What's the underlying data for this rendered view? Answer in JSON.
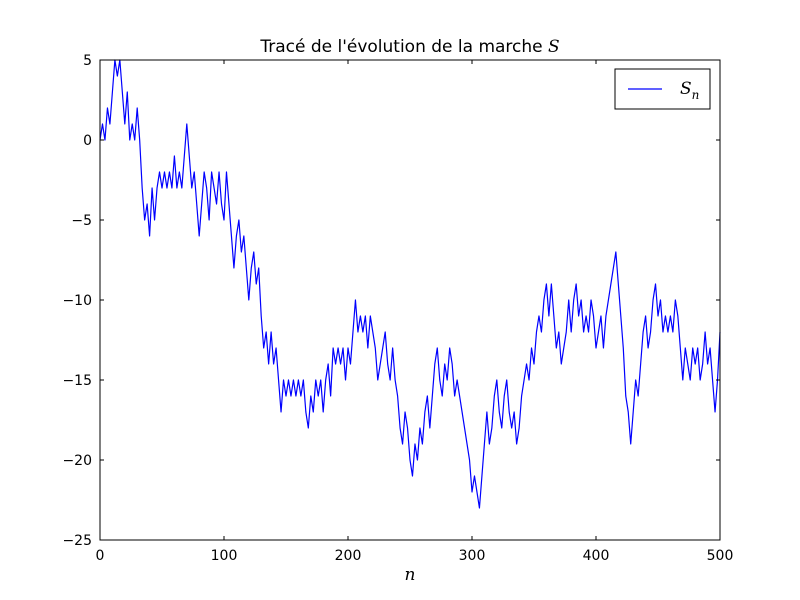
{
  "chart_data": {
    "type": "line",
    "title": {
      "text": "Tracé de l'évolution de la marche ",
      "math_symbol": "S"
    },
    "xlabel": "n",
    "ylabel": "",
    "xlim": [
      0,
      500
    ],
    "ylim": [
      -25,
      5
    ],
    "x_ticks": [
      0,
      100,
      200,
      300,
      400,
      500
    ],
    "y_ticks": [
      5,
      0,
      -5,
      -10,
      -15,
      -20,
      -25
    ],
    "x_tick_labels": [
      "0",
      "100",
      "200",
      "300",
      "400",
      "500"
    ],
    "y_tick_labels": [
      "5",
      "0",
      "−5",
      "−10",
      "−15",
      "−20",
      "−25"
    ],
    "grid": false,
    "legend": {
      "position": "top-right",
      "entries": [
        {
          "symbol": "S",
          "subscript": "n"
        }
      ]
    },
    "series": [
      {
        "color": "#0000ff",
        "points": [
          [
            0,
            0
          ],
          [
            2,
            1
          ],
          [
            4,
            0
          ],
          [
            6,
            2
          ],
          [
            8,
            1
          ],
          [
            10,
            3
          ],
          [
            12,
            5
          ],
          [
            14,
            4
          ],
          [
            16,
            5
          ],
          [
            18,
            3
          ],
          [
            20,
            1
          ],
          [
            22,
            3
          ],
          [
            24,
            0
          ],
          [
            26,
            1
          ],
          [
            28,
            0
          ],
          [
            30,
            2
          ],
          [
            32,
            0
          ],
          [
            34,
            -3
          ],
          [
            36,
            -5
          ],
          [
            38,
            -4
          ],
          [
            40,
            -6
          ],
          [
            42,
            -3
          ],
          [
            44,
            -5
          ],
          [
            46,
            -3
          ],
          [
            48,
            -2
          ],
          [
            50,
            -3
          ],
          [
            52,
            -2
          ],
          [
            54,
            -3
          ],
          [
            56,
            -2
          ],
          [
            58,
            -3
          ],
          [
            60,
            -1
          ],
          [
            62,
            -3
          ],
          [
            64,
            -2
          ],
          [
            66,
            -3
          ],
          [
            68,
            -1
          ],
          [
            70,
            1
          ],
          [
            72,
            -1
          ],
          [
            74,
            -3
          ],
          [
            76,
            -2
          ],
          [
            78,
            -4
          ],
          [
            80,
            -6
          ],
          [
            82,
            -4
          ],
          [
            84,
            -2
          ],
          [
            86,
            -3
          ],
          [
            88,
            -5
          ],
          [
            90,
            -2
          ],
          [
            92,
            -3
          ],
          [
            94,
            -4
          ],
          [
            96,
            -2
          ],
          [
            98,
            -4
          ],
          [
            100,
            -5
          ],
          [
            102,
            -2
          ],
          [
            104,
            -4
          ],
          [
            106,
            -6
          ],
          [
            108,
            -8
          ],
          [
            110,
            -6
          ],
          [
            112,
            -5
          ],
          [
            114,
            -7
          ],
          [
            116,
            -6
          ],
          [
            118,
            -8
          ],
          [
            120,
            -10
          ],
          [
            122,
            -8
          ],
          [
            124,
            -7
          ],
          [
            126,
            -9
          ],
          [
            128,
            -8
          ],
          [
            130,
            -11
          ],
          [
            132,
            -13
          ],
          [
            134,
            -12
          ],
          [
            136,
            -14
          ],
          [
            138,
            -12
          ],
          [
            140,
            -14
          ],
          [
            142,
            -13
          ],
          [
            144,
            -15
          ],
          [
            146,
            -17
          ],
          [
            148,
            -15
          ],
          [
            150,
            -16
          ],
          [
            152,
            -15
          ],
          [
            154,
            -16
          ],
          [
            156,
            -15
          ],
          [
            158,
            -16
          ],
          [
            160,
            -15
          ],
          [
            162,
            -16
          ],
          [
            164,
            -15
          ],
          [
            166,
            -17
          ],
          [
            168,
            -18
          ],
          [
            170,
            -16
          ],
          [
            172,
            -17
          ],
          [
            174,
            -15
          ],
          [
            176,
            -16
          ],
          [
            178,
            -15
          ],
          [
            180,
            -17
          ],
          [
            182,
            -15
          ],
          [
            184,
            -14
          ],
          [
            186,
            -16
          ],
          [
            188,
            -13
          ],
          [
            190,
            -14
          ],
          [
            192,
            -13
          ],
          [
            194,
            -14
          ],
          [
            196,
            -13
          ],
          [
            198,
            -15
          ],
          [
            200,
            -13
          ],
          [
            202,
            -14
          ],
          [
            204,
            -12
          ],
          [
            206,
            -10
          ],
          [
            208,
            -12
          ],
          [
            210,
            -11
          ],
          [
            212,
            -12
          ],
          [
            214,
            -11
          ],
          [
            216,
            -13
          ],
          [
            218,
            -11
          ],
          [
            220,
            -12
          ],
          [
            222,
            -13
          ],
          [
            224,
            -15
          ],
          [
            226,
            -14
          ],
          [
            228,
            -13
          ],
          [
            230,
            -12
          ],
          [
            232,
            -14
          ],
          [
            234,
            -15
          ],
          [
            236,
            -13
          ],
          [
            238,
            -15
          ],
          [
            240,
            -16
          ],
          [
            242,
            -18
          ],
          [
            244,
            -19
          ],
          [
            246,
            -17
          ],
          [
            248,
            -18
          ],
          [
            250,
            -20
          ],
          [
            252,
            -21
          ],
          [
            254,
            -19
          ],
          [
            256,
            -20
          ],
          [
            258,
            -18
          ],
          [
            260,
            -19
          ],
          [
            262,
            -17
          ],
          [
            264,
            -16
          ],
          [
            266,
            -18
          ],
          [
            268,
            -16
          ],
          [
            270,
            -14
          ],
          [
            272,
            -13
          ],
          [
            274,
            -15
          ],
          [
            276,
            -16
          ],
          [
            278,
            -14
          ],
          [
            280,
            -15
          ],
          [
            282,
            -13
          ],
          [
            284,
            -14
          ],
          [
            286,
            -16
          ],
          [
            288,
            -15
          ],
          [
            290,
            -16
          ],
          [
            292,
            -17
          ],
          [
            294,
            -18
          ],
          [
            296,
            -19
          ],
          [
            298,
            -20
          ],
          [
            300,
            -22
          ],
          [
            302,
            -21
          ],
          [
            304,
            -22
          ],
          [
            306,
            -23
          ],
          [
            308,
            -21
          ],
          [
            310,
            -19
          ],
          [
            312,
            -17
          ],
          [
            314,
            -19
          ],
          [
            316,
            -18
          ],
          [
            318,
            -16
          ],
          [
            320,
            -15
          ],
          [
            322,
            -17
          ],
          [
            324,
            -18
          ],
          [
            326,
            -16
          ],
          [
            328,
            -15
          ],
          [
            330,
            -17
          ],
          [
            332,
            -18
          ],
          [
            334,
            -17
          ],
          [
            336,
            -19
          ],
          [
            338,
            -18
          ],
          [
            340,
            -16
          ],
          [
            342,
            -15
          ],
          [
            344,
            -14
          ],
          [
            346,
            -15
          ],
          [
            348,
            -13
          ],
          [
            350,
            -14
          ],
          [
            352,
            -12
          ],
          [
            354,
            -11
          ],
          [
            356,
            -12
          ],
          [
            358,
            -10
          ],
          [
            360,
            -9
          ],
          [
            362,
            -11
          ],
          [
            364,
            -9
          ],
          [
            366,
            -11
          ],
          [
            368,
            -13
          ],
          [
            370,
            -12
          ],
          [
            372,
            -14
          ],
          [
            374,
            -13
          ],
          [
            376,
            -12
          ],
          [
            378,
            -10
          ],
          [
            380,
            -12
          ],
          [
            382,
            -10
          ],
          [
            384,
            -9
          ],
          [
            386,
            -11
          ],
          [
            388,
            -10
          ],
          [
            390,
            -12
          ],
          [
            392,
            -11
          ],
          [
            394,
            -12
          ],
          [
            396,
            -10
          ],
          [
            398,
            -11
          ],
          [
            400,
            -13
          ],
          [
            402,
            -12
          ],
          [
            404,
            -11
          ],
          [
            406,
            -13
          ],
          [
            408,
            -11
          ],
          [
            410,
            -10
          ],
          [
            412,
            -9
          ],
          [
            414,
            -8
          ],
          [
            416,
            -7
          ],
          [
            418,
            -9
          ],
          [
            420,
            -11
          ],
          [
            422,
            -13
          ],
          [
            424,
            -16
          ],
          [
            426,
            -17
          ],
          [
            428,
            -19
          ],
          [
            430,
            -17
          ],
          [
            432,
            -15
          ],
          [
            434,
            -16
          ],
          [
            436,
            -14
          ],
          [
            438,
            -12
          ],
          [
            440,
            -11
          ],
          [
            442,
            -13
          ],
          [
            444,
            -12
          ],
          [
            446,
            -10
          ],
          [
            448,
            -9
          ],
          [
            450,
            -11
          ],
          [
            452,
            -10
          ],
          [
            454,
            -12
          ],
          [
            456,
            -11
          ],
          [
            458,
            -12
          ],
          [
            460,
            -11
          ],
          [
            462,
            -12
          ],
          [
            464,
            -10
          ],
          [
            466,
            -11
          ],
          [
            468,
            -13
          ],
          [
            470,
            -15
          ],
          [
            472,
            -13
          ],
          [
            474,
            -14
          ],
          [
            476,
            -15
          ],
          [
            478,
            -13
          ],
          [
            480,
            -14
          ],
          [
            482,
            -13
          ],
          [
            484,
            -15
          ],
          [
            486,
            -14
          ],
          [
            488,
            -12
          ],
          [
            490,
            -14
          ],
          [
            492,
            -13
          ],
          [
            494,
            -15
          ],
          [
            496,
            -17
          ],
          [
            498,
            -15
          ],
          [
            500,
            -12
          ]
        ]
      }
    ]
  }
}
